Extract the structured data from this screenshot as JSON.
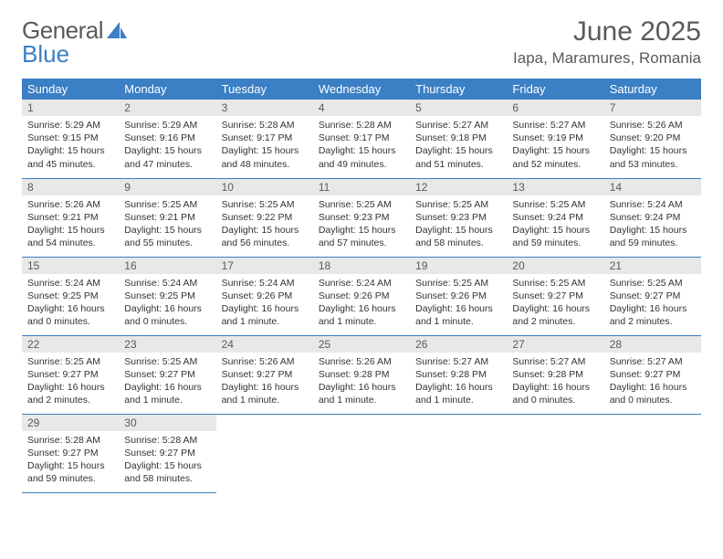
{
  "logo": {
    "text1": "General",
    "text2": "Blue"
  },
  "title": "June 2025",
  "location": "Iapa, Maramures, Romania",
  "colors": {
    "header_bg": "#3b7fc4",
    "header_text": "#ffffff",
    "daynum_bg": "#e8e8e8",
    "body_bg": "#ffffff",
    "text": "#333333",
    "muted": "#5a5a5a",
    "row_border": "#3b7fc4"
  },
  "weekdays": [
    "Sunday",
    "Monday",
    "Tuesday",
    "Wednesday",
    "Thursday",
    "Friday",
    "Saturday"
  ],
  "days": [
    {
      "n": 1,
      "sr": "5:29 AM",
      "ss": "9:15 PM",
      "dl": "15 hours and 45 minutes."
    },
    {
      "n": 2,
      "sr": "5:29 AM",
      "ss": "9:16 PM",
      "dl": "15 hours and 47 minutes."
    },
    {
      "n": 3,
      "sr": "5:28 AM",
      "ss": "9:17 PM",
      "dl": "15 hours and 48 minutes."
    },
    {
      "n": 4,
      "sr": "5:28 AM",
      "ss": "9:17 PM",
      "dl": "15 hours and 49 minutes."
    },
    {
      "n": 5,
      "sr": "5:27 AM",
      "ss": "9:18 PM",
      "dl": "15 hours and 51 minutes."
    },
    {
      "n": 6,
      "sr": "5:27 AM",
      "ss": "9:19 PM",
      "dl": "15 hours and 52 minutes."
    },
    {
      "n": 7,
      "sr": "5:26 AM",
      "ss": "9:20 PM",
      "dl": "15 hours and 53 minutes."
    },
    {
      "n": 8,
      "sr": "5:26 AM",
      "ss": "9:21 PM",
      "dl": "15 hours and 54 minutes."
    },
    {
      "n": 9,
      "sr": "5:25 AM",
      "ss": "9:21 PM",
      "dl": "15 hours and 55 minutes."
    },
    {
      "n": 10,
      "sr": "5:25 AM",
      "ss": "9:22 PM",
      "dl": "15 hours and 56 minutes."
    },
    {
      "n": 11,
      "sr": "5:25 AM",
      "ss": "9:23 PM",
      "dl": "15 hours and 57 minutes."
    },
    {
      "n": 12,
      "sr": "5:25 AM",
      "ss": "9:23 PM",
      "dl": "15 hours and 58 minutes."
    },
    {
      "n": 13,
      "sr": "5:25 AM",
      "ss": "9:24 PM",
      "dl": "15 hours and 59 minutes."
    },
    {
      "n": 14,
      "sr": "5:24 AM",
      "ss": "9:24 PM",
      "dl": "15 hours and 59 minutes."
    },
    {
      "n": 15,
      "sr": "5:24 AM",
      "ss": "9:25 PM",
      "dl": "16 hours and 0 minutes."
    },
    {
      "n": 16,
      "sr": "5:24 AM",
      "ss": "9:25 PM",
      "dl": "16 hours and 0 minutes."
    },
    {
      "n": 17,
      "sr": "5:24 AM",
      "ss": "9:26 PM",
      "dl": "16 hours and 1 minute."
    },
    {
      "n": 18,
      "sr": "5:24 AM",
      "ss": "9:26 PM",
      "dl": "16 hours and 1 minute."
    },
    {
      "n": 19,
      "sr": "5:25 AM",
      "ss": "9:26 PM",
      "dl": "16 hours and 1 minute."
    },
    {
      "n": 20,
      "sr": "5:25 AM",
      "ss": "9:27 PM",
      "dl": "16 hours and 2 minutes."
    },
    {
      "n": 21,
      "sr": "5:25 AM",
      "ss": "9:27 PM",
      "dl": "16 hours and 2 minutes."
    },
    {
      "n": 22,
      "sr": "5:25 AM",
      "ss": "9:27 PM",
      "dl": "16 hours and 2 minutes."
    },
    {
      "n": 23,
      "sr": "5:25 AM",
      "ss": "9:27 PM",
      "dl": "16 hours and 1 minute."
    },
    {
      "n": 24,
      "sr": "5:26 AM",
      "ss": "9:27 PM",
      "dl": "16 hours and 1 minute."
    },
    {
      "n": 25,
      "sr": "5:26 AM",
      "ss": "9:28 PM",
      "dl": "16 hours and 1 minute."
    },
    {
      "n": 26,
      "sr": "5:27 AM",
      "ss": "9:28 PM",
      "dl": "16 hours and 1 minute."
    },
    {
      "n": 27,
      "sr": "5:27 AM",
      "ss": "9:28 PM",
      "dl": "16 hours and 0 minutes."
    },
    {
      "n": 28,
      "sr": "5:27 AM",
      "ss": "9:27 PM",
      "dl": "16 hours and 0 minutes."
    },
    {
      "n": 29,
      "sr": "5:28 AM",
      "ss": "9:27 PM",
      "dl": "15 hours and 59 minutes."
    },
    {
      "n": 30,
      "sr": "5:28 AM",
      "ss": "9:27 PM",
      "dl": "15 hours and 58 minutes."
    }
  ],
  "labels": {
    "sunrise": "Sunrise: ",
    "sunset": "Sunset: ",
    "daylight": "Daylight: "
  },
  "layout": {
    "first_weekday_index": 0,
    "cols": 7,
    "rows": 5
  }
}
